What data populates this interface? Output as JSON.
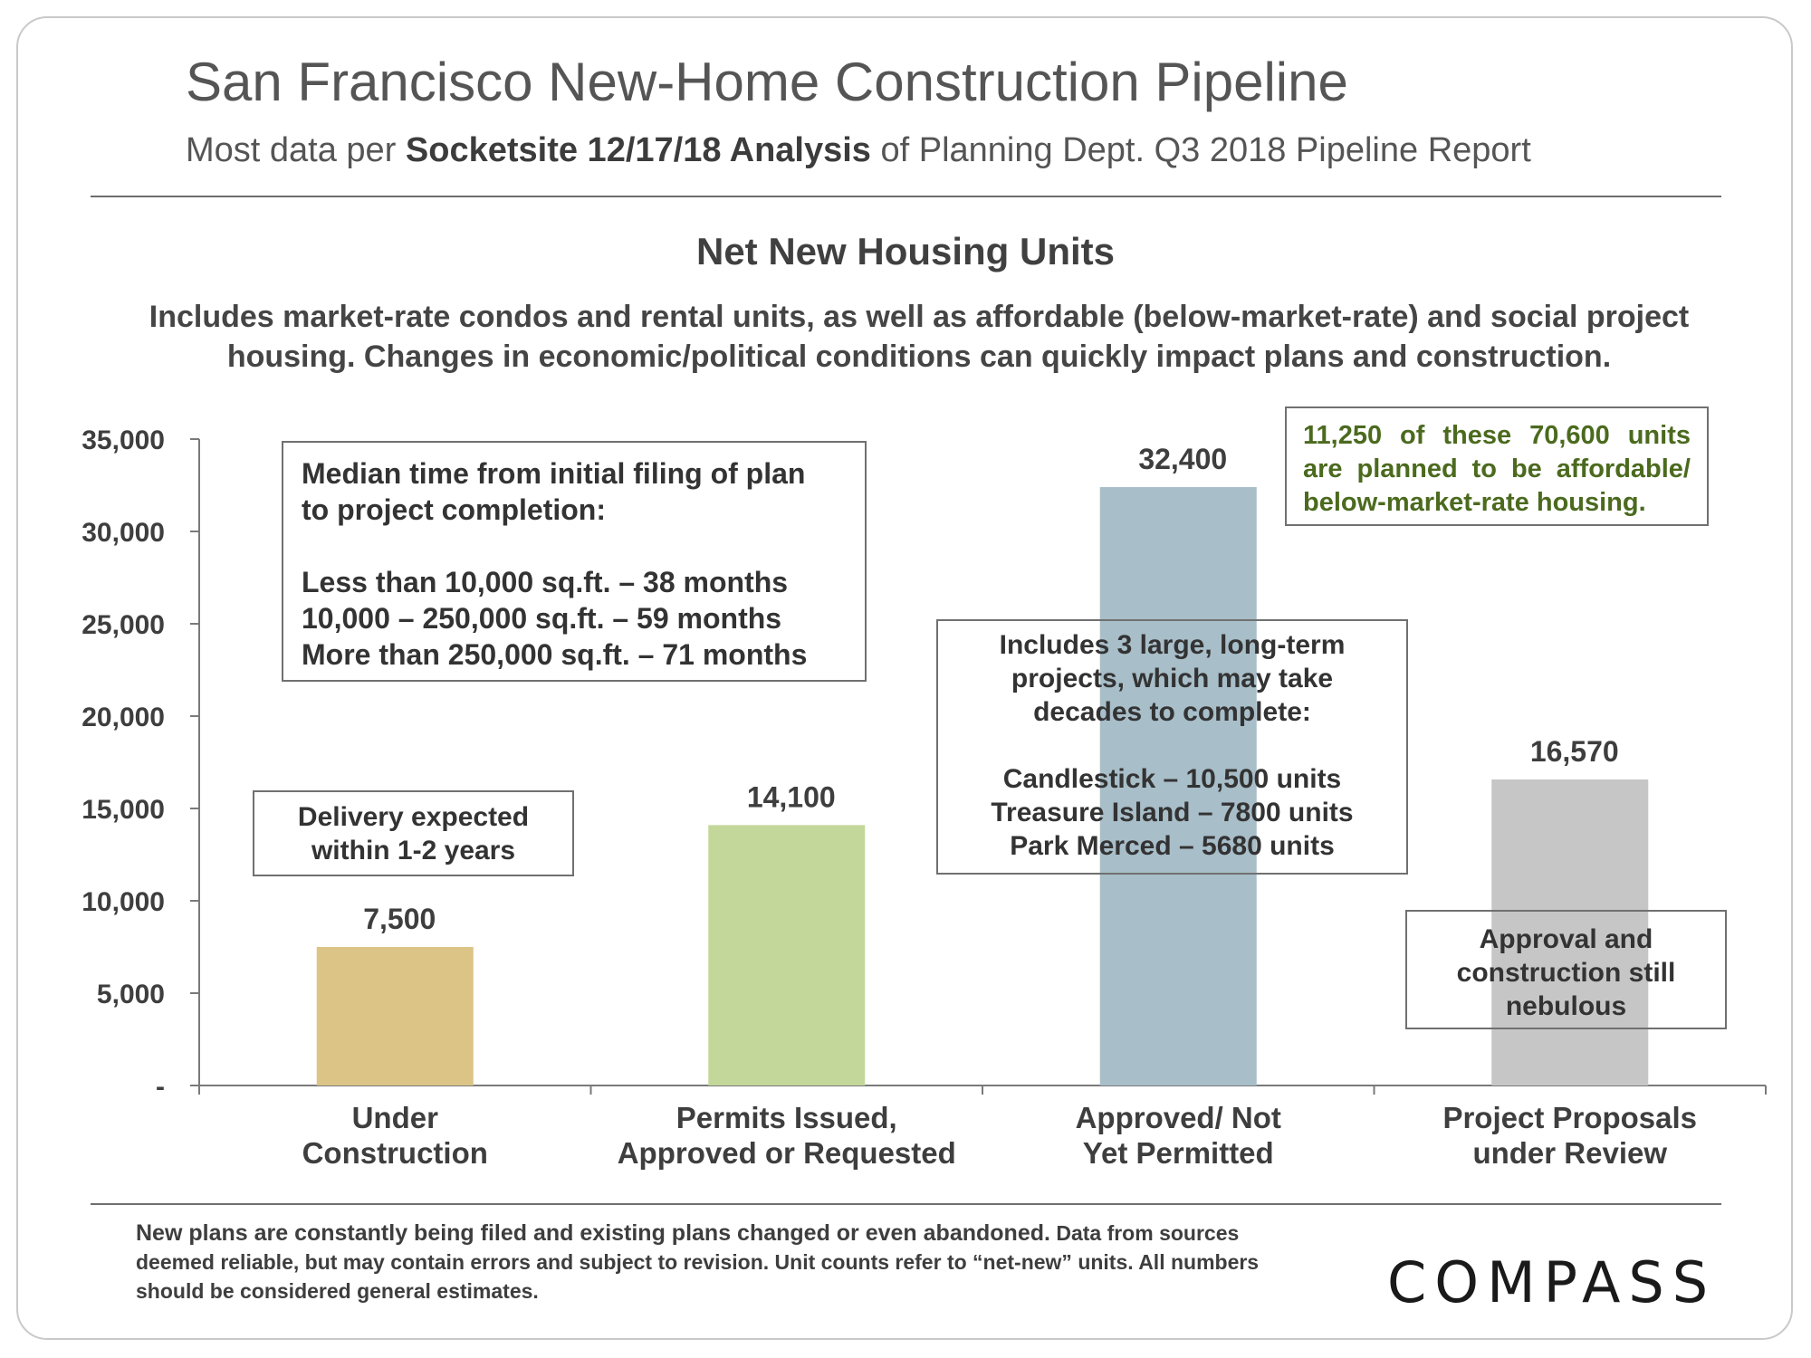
{
  "header": {
    "title": "San Francisco New-Home Construction Pipeline",
    "subtitle_pre": "Most data per ",
    "subtitle_bold": "Socketsite 12/17/18 Analysis",
    "subtitle_post": " of Planning Dept. Q3 2018 Pipeline Report"
  },
  "chart_data": {
    "type": "bar",
    "title": "Net New Housing Units",
    "description": "Includes market-rate condos and rental units, as well as affordable (below-market-rate) and social project housing. Changes in economic/political conditions can quickly impact plans and construction.",
    "categories": [
      [
        "Under",
        "Construction"
      ],
      [
        "Permits Issued,",
        "Approved or Requested"
      ],
      [
        "Approved/ Not",
        "Yet Permitted"
      ],
      [
        "Project Proposals",
        "under Review"
      ]
    ],
    "values": [
      7500,
      14100,
      32400,
      16570
    ],
    "value_labels": [
      "7,500",
      "14,100",
      "32,400",
      "16,570"
    ],
    "colors": [
      "#dbc486",
      "#c4d79b",
      "#a8bec9",
      "#c6c6c6"
    ],
    "ylim": [
      0,
      35000
    ],
    "yticks": [
      0,
      5000,
      10000,
      15000,
      20000,
      25000,
      30000,
      35000
    ],
    "ytick_labels": [
      "-",
      "5,000",
      "10,000",
      "15,000",
      "20,000",
      "25,000",
      "30,000",
      "35,000"
    ],
    "xlabel": "",
    "ylabel": "",
    "grid": false
  },
  "annotations": {
    "median_time": {
      "heading": [
        "Median time from initial filing of plan",
        "to project completion:"
      ],
      "lines": [
        "Less than 10,000 sq.ft. – 38 months",
        "10,000 – 250,000 sq.ft. – 59 months",
        "More than 250,000 sq.ft. – 71 months"
      ]
    },
    "delivery": [
      "Delivery expected",
      "within 1-2 years"
    ],
    "large_projects": {
      "heading": [
        "Includes 3 large, long-term",
        "projects, which may take",
        "decades to complete:"
      ],
      "lines": [
        "Candlestick – 10,500 units",
        "Treasure Island – 7800 units",
        "Park Merced – 5680 units"
      ]
    },
    "affordable": "11,250 of these 70,600 units are planned to be affordable/ below-market-rate housing.",
    "nebulous": [
      "Approval and",
      "construction still",
      "nebulous"
    ]
  },
  "footer": {
    "lead": "New plans are constantly being filed and existing plans changed or even abandoned.",
    "rest": " Data from sources deemed reliable, but may contain errors and subject to revision. Unit counts refer to “net-new” units. All numbers should be considered general estimates.",
    "logo": "COMPASS"
  }
}
